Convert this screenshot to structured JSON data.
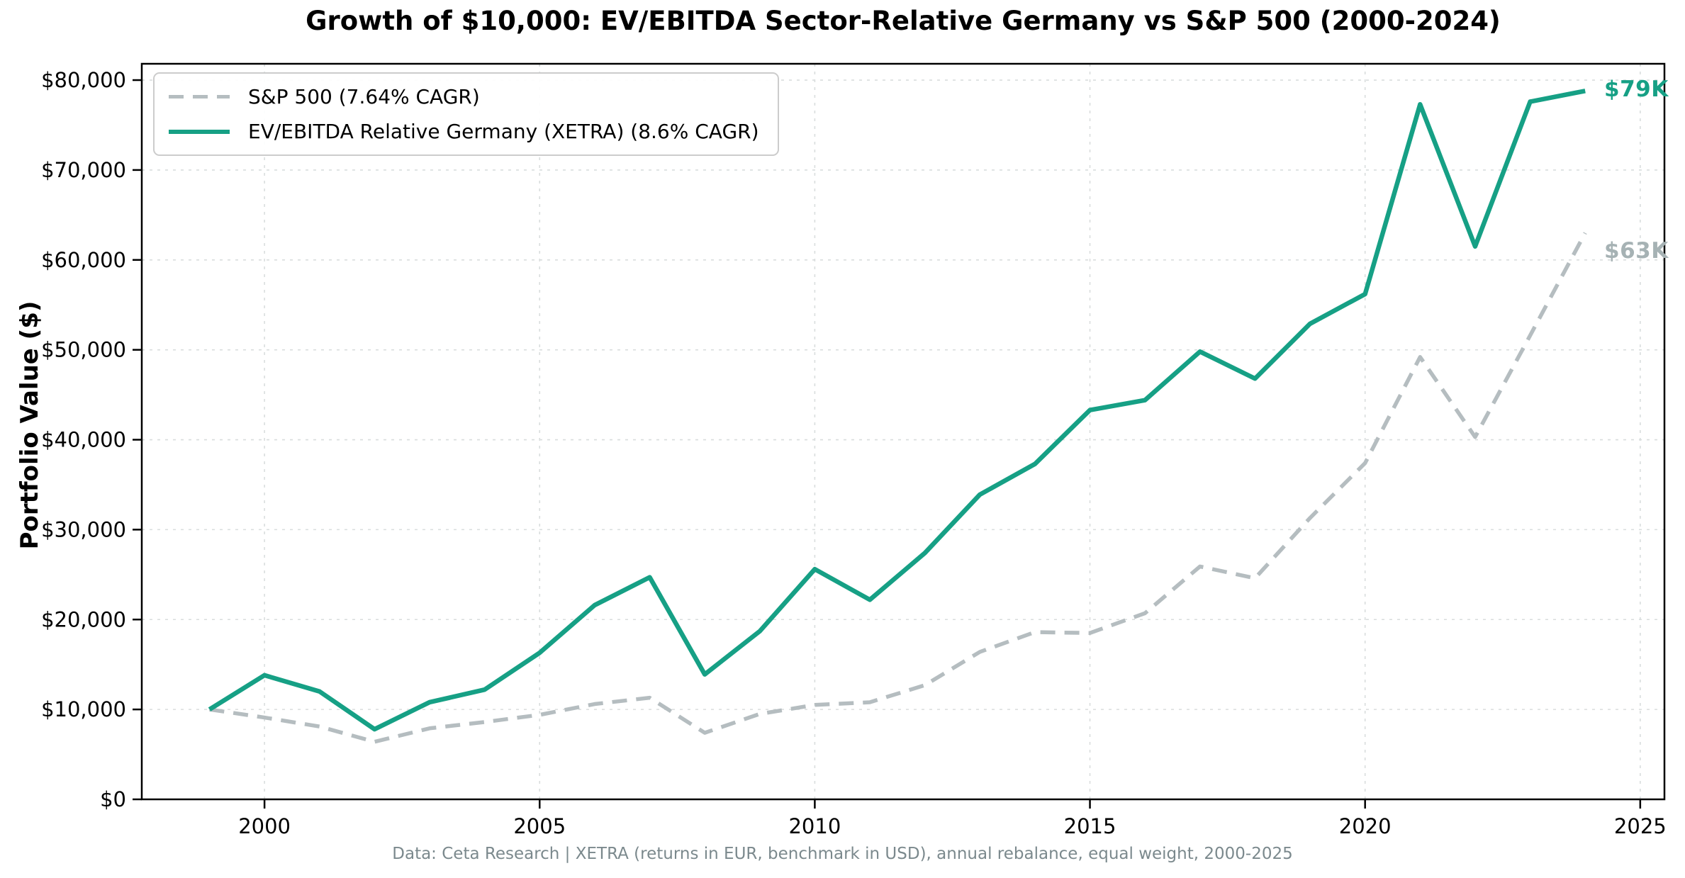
{
  "chart": {
    "title": "Growth of $10,000: EV/EBITDA Sector-Relative Germany vs S&P 500 (2000-2024)",
    "ylabel": "Portfolio Value ($)",
    "footer": "Data: Ceta Research | XETRA (returns in EUR, benchmark in USD), annual rebalance, equal weight, 2000-2025",
    "end_labels": {
      "germany": "$79K",
      "sp500": "$63K"
    }
  },
  "legend": {
    "sp500": "S&P 500 (7.64% CAGR)",
    "germany": "EV/EBITDA Relative Germany (XETRA) (8.6% CAGR)"
  },
  "colors": {
    "germany_line": "#16a085",
    "sp500_line": "#b5bdc0",
    "sp500_end_label": "#a6b2b4",
    "grid": "#d9dddd",
    "axis": "#000000",
    "footer_text": "#7b898d"
  },
  "chart_data": {
    "type": "line",
    "x": [
      1999,
      2000,
      2001,
      2002,
      2003,
      2004,
      2005,
      2006,
      2007,
      2008,
      2009,
      2010,
      2011,
      2012,
      2013,
      2014,
      2015,
      2016,
      2017,
      2018,
      2019,
      2020,
      2021,
      2022,
      2023,
      2024
    ],
    "series": [
      {
        "name": "S&P 500 (7.64% CAGR)",
        "style": "dashed",
        "color": "#b5bdc0",
        "values": [
          10000,
          9100,
          8100,
          6400,
          7900,
          8600,
          9400,
          10600,
          11300,
          7400,
          9500,
          10500,
          10800,
          12700,
          16400,
          18600,
          18500,
          20700,
          25900,
          24600,
          31300,
          37400,
          49200,
          40300,
          51600,
          63000
        ]
      },
      {
        "name": "EV/EBITDA Relative Germany (XETRA) (8.6% CAGR)",
        "style": "solid",
        "color": "#16a085",
        "values": [
          10000,
          13800,
          12000,
          7800,
          10800,
          12200,
          16300,
          21600,
          24700,
          13900,
          18700,
          25600,
          22200,
          27400,
          33900,
          37300,
          43300,
          44400,
          49800,
          46800,
          52900,
          56200,
          77300,
          61500,
          77600,
          78800
        ]
      }
    ],
    "title": "Growth of $10,000: EV/EBITDA Sector-Relative Germany vs S&P 500 (2000-2024)",
    "xlabel": "",
    "ylabel": "Portfolio Value ($)",
    "xticks": [
      2000,
      2005,
      2010,
      2015,
      2020,
      2025
    ],
    "yticks": [
      0,
      10000,
      20000,
      30000,
      40000,
      50000,
      60000,
      70000,
      80000
    ],
    "ytick_labels": [
      "$0",
      "$10,000",
      "$20,000",
      "$30,000",
      "$40,000",
      "$50,000",
      "$60,000",
      "$70,000",
      "$80,000"
    ],
    "xlim": [
      1997.77,
      2025.44
    ],
    "ylim": [
      0,
      81815
    ],
    "grid": true,
    "legend_position": "upper left",
    "annotations": [
      {
        "text": "$79K",
        "series": "EV/EBITDA Relative Germany (XETRA)",
        "x": 2024,
        "y": 78800
      },
      {
        "text": "$63K",
        "series": "S&P 500",
        "x": 2024,
        "y": 61000
      }
    ]
  }
}
